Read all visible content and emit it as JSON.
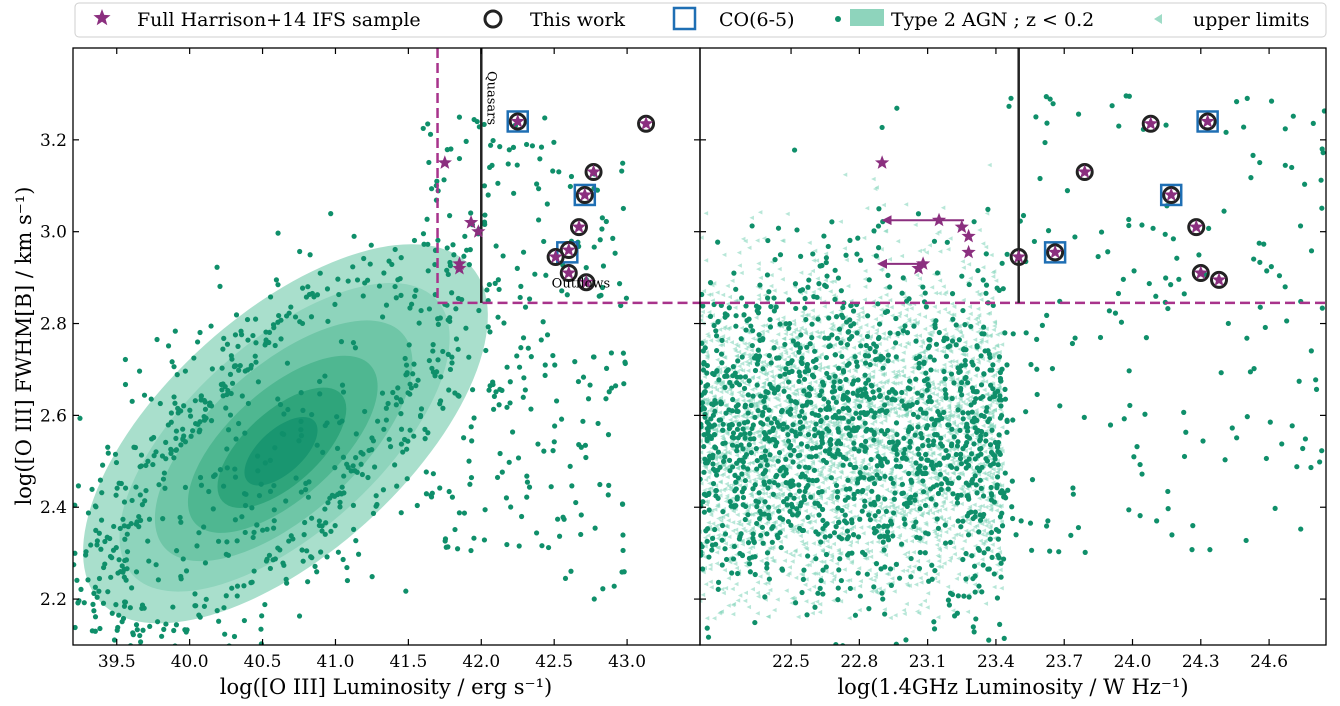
{
  "legend": {
    "position": "top",
    "items": [
      {
        "label": "Full Harrison+14 IFS sample",
        "marker": "star",
        "color": "#8B2F7F"
      },
      {
        "label": "This work",
        "marker": "ring",
        "color": "#222222"
      },
      {
        "label": "CO(6-5)",
        "marker": "square",
        "color": "#1F6FB4"
      },
      {
        "label": "Type 2 AGN ; z < 0.2",
        "marker": "dot-and-patch",
        "color": "#0F8F6A"
      },
      {
        "label": "upper limits",
        "marker": "triangle-left",
        "color": "#7ED3B8"
      }
    ]
  },
  "colors": {
    "agn": "#0F8F6A",
    "upper": "#7ED3B8",
    "star": "#8B2F7F",
    "ring": "#222222",
    "co": "#1F6FB4",
    "cut": "#A8338B"
  },
  "chart_data": [
    {
      "type": "scatter",
      "xlabel": "log([O III] Luminosity / erg s⁻¹)",
      "ylabel": "log([O III] FWHM[B] / km s⁻¹)",
      "xlim": [
        39.2,
        43.5
      ],
      "ylim": [
        2.1,
        3.4
      ],
      "xticks": [
        "39.5",
        "40.0",
        "40.5",
        "41.0",
        "41.5",
        "42.0",
        "42.5",
        "43.0"
      ],
      "yticks": [
        "2.2",
        "2.4",
        "2.6",
        "2.8",
        "3.0",
        "3.2"
      ],
      "annotations": [
        {
          "text": "Quasars",
          "x": 42.0,
          "y": 3.35,
          "rotate": 90
        },
        {
          "text": "Outflows",
          "x": 42.62,
          "y": 2.87
        }
      ],
      "cuts": {
        "vertical_dashed_x": 41.7,
        "horizontal_dashed_y": 2.845,
        "vertical_solid_x": 42.0
      },
      "density_contour_center": [
        40.55,
        2.5
      ],
      "series": [
        {
          "name": "Full Harrison+14 IFS sample",
          "points": [
            [
              41.75,
              3.15
            ],
            [
              41.93,
              3.02
            ],
            [
              41.98,
              3.0
            ],
            [
              41.85,
              2.93
            ],
            [
              41.85,
              2.92
            ],
            [
              42.25,
              3.24
            ],
            [
              42.6,
              2.96
            ],
            [
              42.51,
              2.945
            ],
            [
              42.6,
              2.91
            ],
            [
              42.72,
              2.89
            ],
            [
              42.67,
              3.01
            ],
            [
              42.71,
              3.08
            ],
            [
              42.77,
              3.13
            ],
            [
              43.13,
              3.235
            ]
          ]
        },
        {
          "name": "This work",
          "points": [
            [
              42.25,
              3.24
            ],
            [
              42.6,
              2.96
            ],
            [
              42.51,
              2.945
            ],
            [
              42.6,
              2.91
            ],
            [
              42.72,
              2.89
            ],
            [
              42.67,
              3.01
            ],
            [
              42.71,
              3.08
            ],
            [
              42.77,
              3.13
            ],
            [
              43.13,
              3.235
            ]
          ]
        },
        {
          "name": "CO(6-5)",
          "points": [
            [
              42.25,
              3.24
            ],
            [
              42.59,
              2.955
            ],
            [
              42.71,
              3.08
            ]
          ]
        }
      ]
    },
    {
      "type": "scatter",
      "xlabel": "log(1.4GHz Luminosity / W Hz⁻¹)",
      "ylabel": "",
      "xlim": [
        22.1,
        24.85
      ],
      "ylim": [
        2.1,
        3.4
      ],
      "xticks": [
        "22.5",
        "22.8",
        "23.1",
        "23.4",
        "23.7",
        "24.0",
        "24.3",
        "24.6"
      ],
      "cuts": {
        "horizontal_dashed_y": 2.845,
        "vertical_solid_x": 23.5
      },
      "series": [
        {
          "name": "Full Harrison+14 IFS sample",
          "points": [
            [
              22.9,
              3.15
            ],
            [
              23.15,
              3.025
            ],
            [
              23.25,
              3.01
            ],
            [
              23.28,
              2.99
            ],
            [
              23.08,
              2.93
            ],
            [
              23.06,
              2.92
            ],
            [
              23.28,
              2.955
            ],
            [
              23.5,
              2.945
            ],
            [
              23.66,
              2.955
            ],
            [
              23.79,
              3.13
            ],
            [
              24.08,
              3.235
            ],
            [
              24.17,
              3.08
            ],
            [
              24.28,
              3.01
            ],
            [
              24.3,
              2.91
            ],
            [
              24.38,
              2.895
            ],
            [
              24.33,
              3.24
            ]
          ]
        },
        {
          "name": "This work",
          "points": [
            [
              23.5,
              2.945
            ],
            [
              23.66,
              2.955
            ],
            [
              23.79,
              3.13
            ],
            [
              24.08,
              3.235
            ],
            [
              24.17,
              3.08
            ],
            [
              24.28,
              3.01
            ],
            [
              24.3,
              2.91
            ],
            [
              24.38,
              2.895
            ],
            [
              24.33,
              3.24
            ]
          ]
        },
        {
          "name": "CO(6-5)",
          "points": [
            [
              23.66,
              2.955
            ],
            [
              24.17,
              3.08
            ],
            [
              24.33,
              3.24
            ]
          ]
        }
      ],
      "upper_limit_arrows": [
        {
          "y": 3.025,
          "x_from": 22.92,
          "x_to": 23.26
        },
        {
          "y": 2.93,
          "x_from": 22.9,
          "x_to": 23.07
        }
      ]
    }
  ]
}
